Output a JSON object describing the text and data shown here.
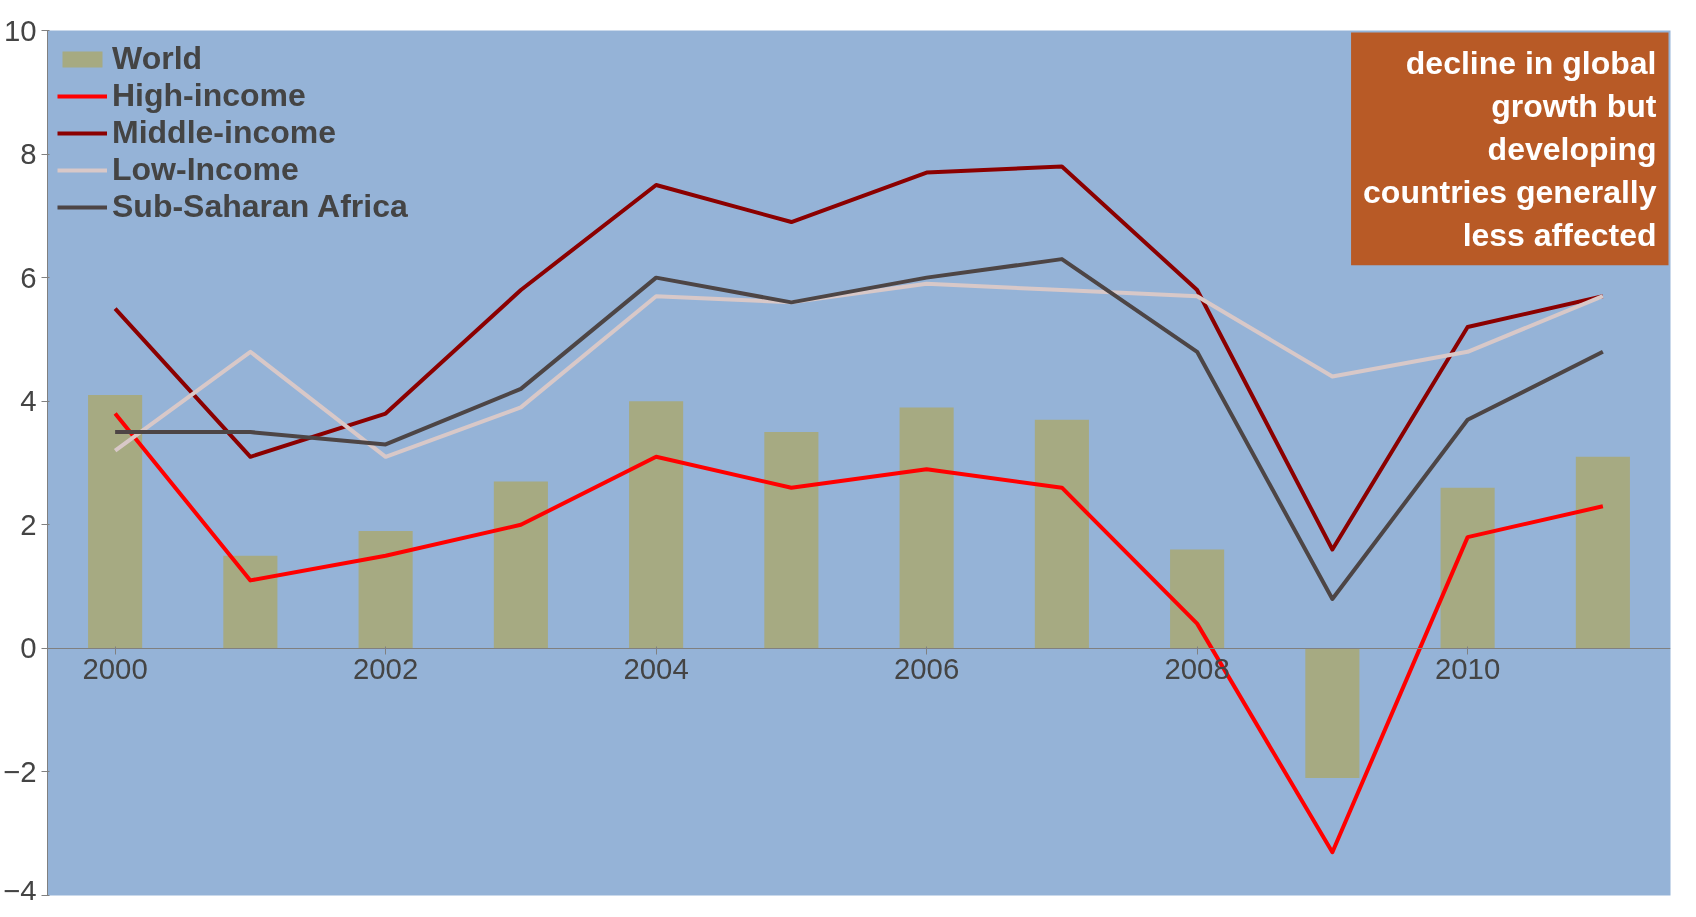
{
  "chart_data": {
    "type": "line",
    "x": [
      2000,
      2001,
      2002,
      2003,
      2004,
      2005,
      2006,
      2007,
      2008,
      2009,
      2010,
      2011
    ],
    "xlim": [
      1999.5,
      2011.5
    ],
    "xticks": [
      2000,
      2002,
      2004,
      2006,
      2008,
      2010
    ],
    "ylim": [
      -4,
      10
    ],
    "yticks": [
      -4,
      -2,
      0,
      2,
      4,
      6,
      8,
      10
    ],
    "series": [
      {
        "name": "World",
        "type": "bar",
        "color": "#a6aa82",
        "values": [
          4.1,
          1.5,
          1.9,
          2.7,
          4.0,
          3.5,
          3.9,
          3.7,
          1.6,
          -2.1,
          2.6,
          3.1
        ]
      },
      {
        "name": "High-income",
        "color": "#ff0000",
        "values": [
          3.8,
          1.1,
          1.5,
          2.0,
          3.1,
          2.6,
          2.9,
          2.6,
          0.4,
          -3.3,
          1.8,
          2.3
        ]
      },
      {
        "name": "Middle-income",
        "color": "#8b0000",
        "values": [
          5.5,
          3.1,
          3.8,
          5.8,
          7.5,
          6.9,
          7.7,
          7.8,
          5.8,
          1.6,
          5.2,
          5.7
        ]
      },
      {
        "name": "Low-Income",
        "color": "#d8c8c8",
        "values": [
          3.2,
          4.8,
          3.1,
          3.9,
          5.7,
          5.6,
          5.9,
          5.8,
          5.7,
          4.4,
          4.8,
          5.7
        ]
      },
      {
        "name": "Sub-Saharan Africa",
        "color": "#4d4545",
        "values": [
          3.5,
          3.5,
          3.3,
          4.2,
          6.0,
          5.6,
          6.0,
          6.3,
          4.8,
          0.8,
          3.7,
          4.8
        ]
      }
    ],
    "legend": "top left",
    "grid": false,
    "annotations": [
      "decline in global growth but developing countries generally less affected"
    ]
  }
}
